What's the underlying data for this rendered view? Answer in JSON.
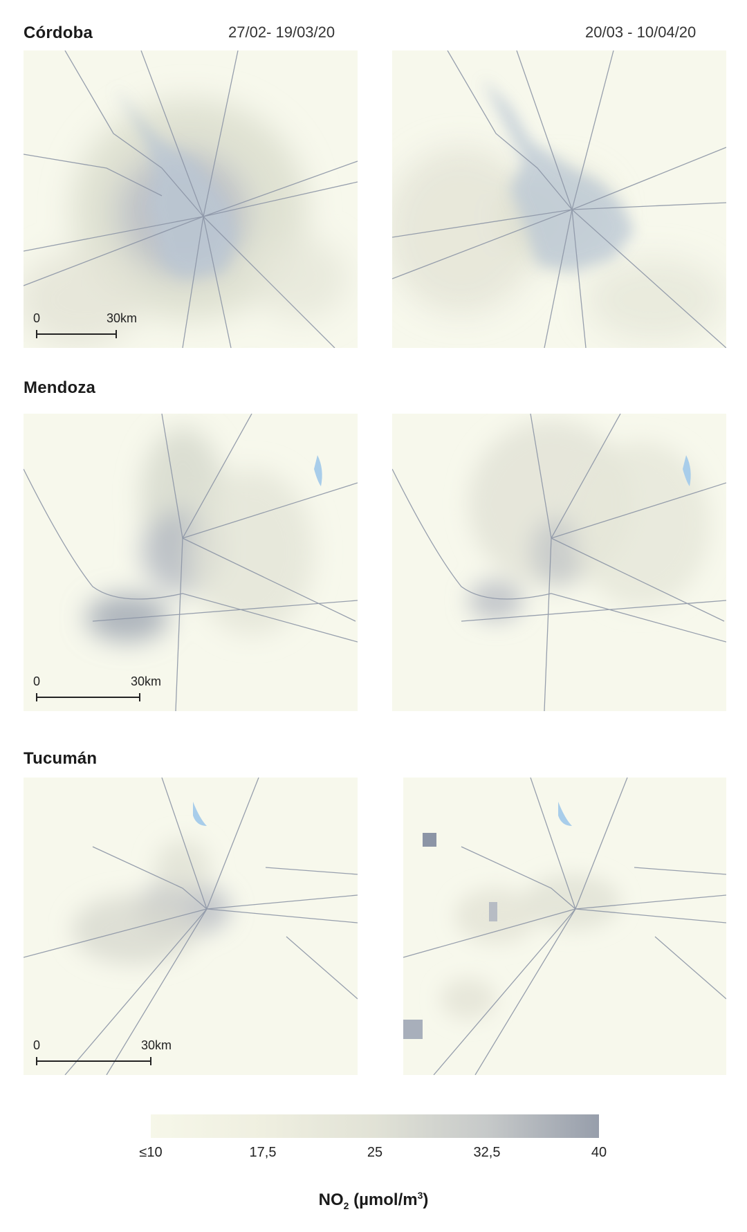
{
  "periods": {
    "before": "27/02- 19/03/20",
    "after": "20/03 - 10/04/20"
  },
  "cities": [
    {
      "name": "Córdoba",
      "scale_zero": "0",
      "scale_label": "30km"
    },
    {
      "name": "Mendoza",
      "scale_zero": "0",
      "scale_label": "30km"
    },
    {
      "name": "Tucumán",
      "scale_zero": "0",
      "scale_label": "30km"
    }
  ],
  "legend": {
    "ticks": [
      "≤10",
      "17,5",
      "25",
      "32,5",
      "40"
    ],
    "unit_prefix": "NO",
    "unit_sub": "2",
    "unit_mid": " (µmol/m",
    "unit_sup": "3",
    "unit_suffix": ")",
    "colors": {
      "low": "#f6f7e9",
      "high": "#979eab"
    }
  },
  "colors": {
    "map_bg": "#f7f8ec",
    "urban": "#b9c6d4",
    "water": "#a8cdea",
    "roads": "#8c95a6"
  }
}
